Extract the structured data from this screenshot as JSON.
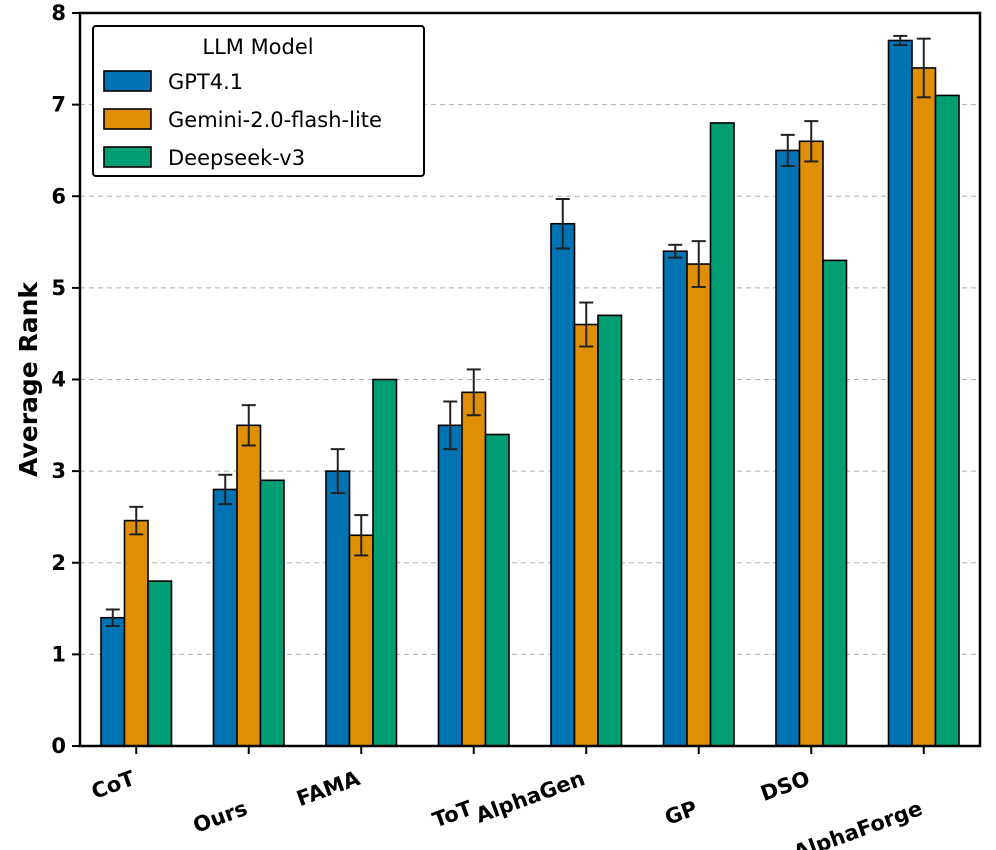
{
  "chart_data": {
    "type": "bar",
    "title": "",
    "xlabel": "",
    "ylabel": "Average Rank",
    "ylim": [
      0,
      8
    ],
    "yticks": [
      "0",
      "1",
      "2",
      "3",
      "4",
      "5",
      "6",
      "7",
      "8"
    ],
    "grid": "y-dashed",
    "categories": [
      "CoT",
      "Ours",
      "FAMA",
      "ToT",
      "AlphaGen",
      "GP",
      "DSO",
      "AlphaForge"
    ],
    "legend": {
      "title": "LLM Model",
      "location": "top-left"
    },
    "series": [
      {
        "name": "GPT4.1",
        "color": "#0173b2",
        "values": [
          1.4,
          2.8,
          3.0,
          3.5,
          5.7,
          5.4,
          6.5,
          7.7
        ],
        "errors": [
          0.09,
          0.16,
          0.24,
          0.26,
          0.27,
          0.07,
          0.17,
          0.05
        ]
      },
      {
        "name": "Gemini-2.0-flash-lite",
        "color": "#de8f05",
        "values": [
          2.46,
          3.5,
          2.3,
          3.86,
          4.6,
          5.26,
          6.6,
          7.4
        ],
        "errors": [
          0.15,
          0.22,
          0.22,
          0.25,
          0.24,
          0.25,
          0.22,
          0.32
        ]
      },
      {
        "name": "Deepseek-v3",
        "color": "#029e73",
        "values": [
          1.8,
          2.9,
          4.0,
          3.4,
          4.7,
          6.8,
          5.3,
          7.1
        ]
      }
    ]
  }
}
